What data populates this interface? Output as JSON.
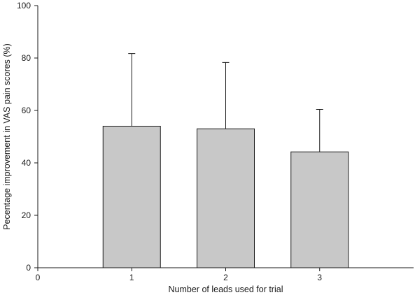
{
  "chart_data": {
    "type": "bar",
    "xlabel": "Number of leads used for trial",
    "ylabel": "Pecentage improvement in VAS pain scores (%)",
    "xlim": [
      0,
      4
    ],
    "ylim": [
      0,
      100
    ],
    "x_ticks": [
      0,
      1,
      2,
      3
    ],
    "y_ticks": [
      0,
      20,
      40,
      60,
      80,
      100
    ],
    "grid": false,
    "bar_color": "#c8c8c8",
    "edge_color": "#1a1a1a",
    "bars": [
      {
        "x": 1,
        "value": 54,
        "error_upper": 81.7
      },
      {
        "x": 2,
        "value": 53,
        "error_upper": 78.3
      },
      {
        "x": 3,
        "value": 44.2,
        "error_upper": 60.4
      }
    ]
  }
}
